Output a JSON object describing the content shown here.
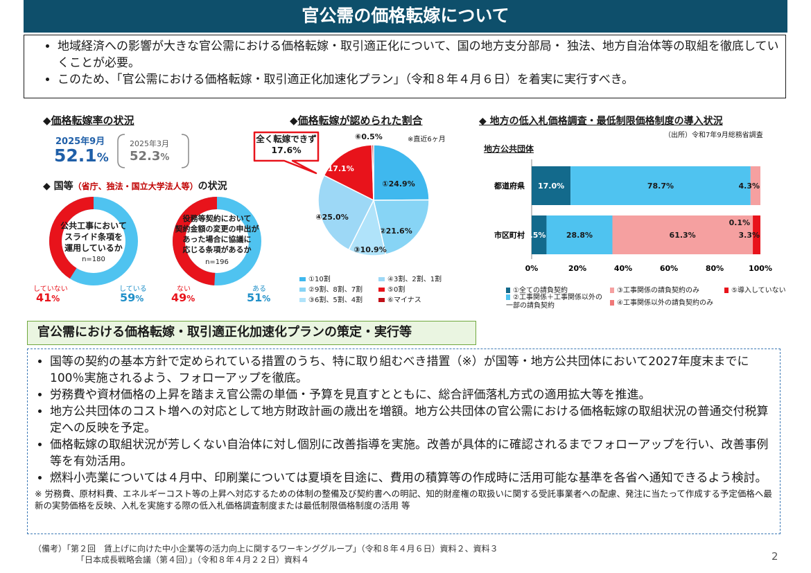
{
  "header": {
    "title": "官公需の価格転嫁について"
  },
  "intro": [
    "地域経済への影響が大きな官公需における価格転嫁・取引適正化について、国の地方支分部局・ 独法、地方自治体等の取組を徹底していくことが必要。",
    "このため、「官公需における価格転嫁・取引適正化加速化プラン」（令和８年４月６日）を着実に実行すべき。"
  ],
  "rate_section": {
    "heading_mark": "◆",
    "heading": "価格転嫁率の状況",
    "current_label": "2025年9月",
    "current_value": "52.1",
    "current_unit": "%",
    "prev_label": "2025年3月",
    "prev_value": "52.3",
    "prev_unit": "%"
  },
  "national_section": {
    "heading": "◆ 国等",
    "heading_note": "（省庁、独法・国立大学法人等）",
    "heading_tail": "の状況",
    "donut1": {
      "question": "公共工事において\nスライド条項を\n運用しているか",
      "n": "n=180",
      "no_label": "していない",
      "no_pct": "41",
      "yes_label": "している",
      "yes_pct": "59"
    },
    "donut2": {
      "question": "役務等契約において\n契約金額の変更の申出が\nあった場合に協議に\n応じる条項があるか",
      "n": "n=196",
      "no_label": "ない",
      "no_pct": "49",
      "yes_label": "ある",
      "yes_pct": "51"
    },
    "pct_unit": "%"
  },
  "pie_section": {
    "heading_mark": "◆",
    "heading": "価格転嫁が認められた割合",
    "note": "※直近6ヶ月",
    "callout": "全く転嫁できず\n17.6%",
    "top_label": "⑥0.5%"
  },
  "survey_section": {
    "heading": "◆ 地方の低入札価格調査・最低制限価格制度の導入状況",
    "source": "（出所）令和7年9月総務省調査",
    "subheading": "地方公共団体",
    "x_ticks": [
      "0%",
      "20%",
      "40%",
      "60%",
      "80%",
      "100%"
    ],
    "legend": [
      {
        "label": "①全ての請負契約",
        "color": "#136a8c"
      },
      {
        "label": "②工事関係＋工事関係以外の\n一部の請負契約",
        "color": "#4fc3f0"
      },
      {
        "label": "③工事関係の請負契約のみ",
        "color": "#f5a0a0"
      },
      {
        "label": "④工事関係以外の請負契約のみ",
        "color": "#f07878"
      },
      {
        "label": "⑤導入していない",
        "color": "#e8131b"
      }
    ]
  },
  "chart_data": [
    {
      "type": "pie",
      "title": "価格転嫁が認められた割合",
      "categories": [
        "①10割",
        "②9割、8割、7割",
        "③6割、5割、4割",
        "④3割、2割、1割",
        "⑤0割",
        "⑥マイナス"
      ],
      "values": [
        24.9,
        21.6,
        10.9,
        25.0,
        17.1,
        0.5
      ],
      "labels": [
        "①24.9%",
        "②21.6%",
        "③10.9%",
        "④25.0%",
        "⑤17.1%",
        "⑥0.5%"
      ],
      "colors": [
        "#3fb8ee",
        "#87d4f5",
        "#b0e3fa",
        "#9dd8f6",
        "#e8131b",
        "#c01018"
      ]
    },
    {
      "type": "bar",
      "orientation": "horizontal-stacked",
      "categories": [
        "都道府県",
        "市区町村"
      ],
      "series": [
        {
          "name": "①全ての請負契約",
          "values": [
            17.0,
            6.5
          ]
        },
        {
          "name": "②工事関係＋工事関係以外の一部の請負契約",
          "values": [
            78.7,
            28.8
          ]
        },
        {
          "name": "③工事関係の請負契約のみ",
          "values": [
            4.3,
            61.3
          ]
        },
        {
          "name": "④工事関係以外の請負契約のみ",
          "values": [
            0,
            0.1
          ]
        },
        {
          "name": "⑤導入していない",
          "values": [
            0,
            3.3
          ]
        }
      ],
      "value_labels": [
        [
          "17.0%",
          "78.7%",
          "4.3%"
        ],
        [
          "6.5%",
          "28.8%",
          "61.3%",
          "0.1%",
          "3.3%"
        ]
      ],
      "xlim": [
        0,
        100
      ]
    }
  ],
  "plan": {
    "title": "官公需における価格転嫁・取引適正化加速化プランの策定・実行等",
    "bullets": [
      "国等の契約の基本方針で定められている措置のうち、特に取り組むべき措置（※）が国等・地方公共団体において2027年度末までに100％実施されるよう、フォローアップを徹底。",
      "労務費や資材価格の上昇を踏まえ官公需の単価・予算を見直すとともに、総合評価落札方式の適用拡大等を推進。",
      " 地方公共団体のコスト増への対応として地方財政計画の歳出を増額。地方公共団体の官公需における価格転嫁の取組状況の普通交付税算定への反映を予定。",
      "価格転嫁の取組状況が芳しくない自治体に対し個別に改善指導を実施。改善が具体的に確認されるまでフォローアップを行い、改善事例等を有効活用。",
      "燃料小売業については４月中、印刷業については夏頃を目途に、費用の積算等の作成時に活用可能な基準を各省へ通知できるよう検討。"
    ],
    "note": "※ 労務費、原材料費、エネルギーコスト等の上昇へ対応するための体制の整備及び契約書への明記、知的財産権の取扱いに関する受託事業者への配慮、発注に当たって作成する予定価格へ最新の実勢価格を反映、入札を実施する際の低入札価格調査制度または最低制限価格制度の活用 等"
  },
  "footer": {
    "line1": "（備考）「第２回　賃上げに向けた中小企業等の活力向上に関するワーキンググループ」（令和８年４月６日）資料２、資料３",
    "line2": "「日本成長戦略会議（第４回）」（令和８年４月２２日）資料４",
    "page": "2"
  }
}
